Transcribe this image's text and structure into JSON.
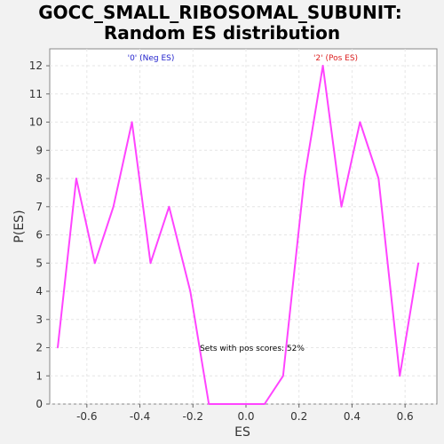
{
  "chart_data": {
    "type": "line",
    "title_line1": "GOCC_SMALL_RIBOSOMAL_SUBUNIT:",
    "title_line2": "Random ES distribution",
    "xlabel": "ES",
    "ylabel": "P(ES)",
    "xlim": [
      -0.74,
      0.72
    ],
    "ylim": [
      0,
      12.6
    ],
    "x_ticks": [
      -0.6,
      -0.4,
      -0.2,
      0.0,
      0.2,
      0.4,
      0.6
    ],
    "x_tick_labels": [
      "-0.6",
      "-0.4",
      "-0.2",
      "0.0",
      "0.2",
      "0.4",
      "0.6"
    ],
    "y_ticks": [
      0,
      1,
      2,
      3,
      4,
      5,
      6,
      7,
      8,
      9,
      10,
      11,
      12
    ],
    "y_tick_labels": [
      "0",
      "1",
      "2",
      "3",
      "4",
      "5",
      "6",
      "7",
      "8",
      "9",
      "10",
      "11",
      "12"
    ],
    "grid": true,
    "series": [
      {
        "color": "#ff44ff",
        "x": [
          -0.71,
          -0.64,
          -0.57,
          -0.5,
          -0.43,
          -0.36,
          -0.29,
          -0.21,
          -0.14,
          -0.07,
          0.0,
          0.07,
          0.14,
          0.22,
          0.29,
          0.36,
          0.43,
          0.5,
          0.58,
          0.65
        ],
        "y": [
          2,
          8,
          5,
          7,
          10,
          5,
          7,
          4,
          0,
          0,
          0,
          0,
          1,
          8,
          12,
          7,
          10,
          8,
          1,
          5
        ]
      }
    ],
    "annotations": {
      "neg_label": "'0' (Neg ES)",
      "pos_label": "'2' (Pos ES)",
      "pos_scores": "Sets with pos scores: 52%",
      "neg_color": "#2222cc",
      "pos_color": "#dd2222"
    }
  }
}
